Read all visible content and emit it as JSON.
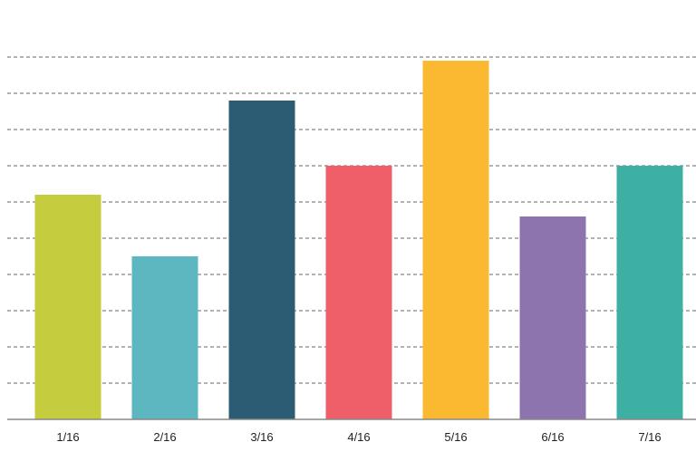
{
  "chart_data": {
    "type": "bar",
    "categories": [
      "1/16",
      "2/16",
      "3/16",
      "4/16",
      "5/16",
      "6/16",
      "7/16"
    ],
    "values": [
      62,
      45,
      88,
      70,
      99,
      56,
      70
    ],
    "colors": [
      "#c5cc3e",
      "#5db7c0",
      "#2b5c74",
      "#ee5f6a",
      "#fbb931",
      "#8d74ae",
      "#3eb0a3"
    ],
    "ylim": [
      0,
      100
    ],
    "grid": true,
    "gridlines": 10,
    "title": "",
    "xlabel": "",
    "ylabel": ""
  }
}
